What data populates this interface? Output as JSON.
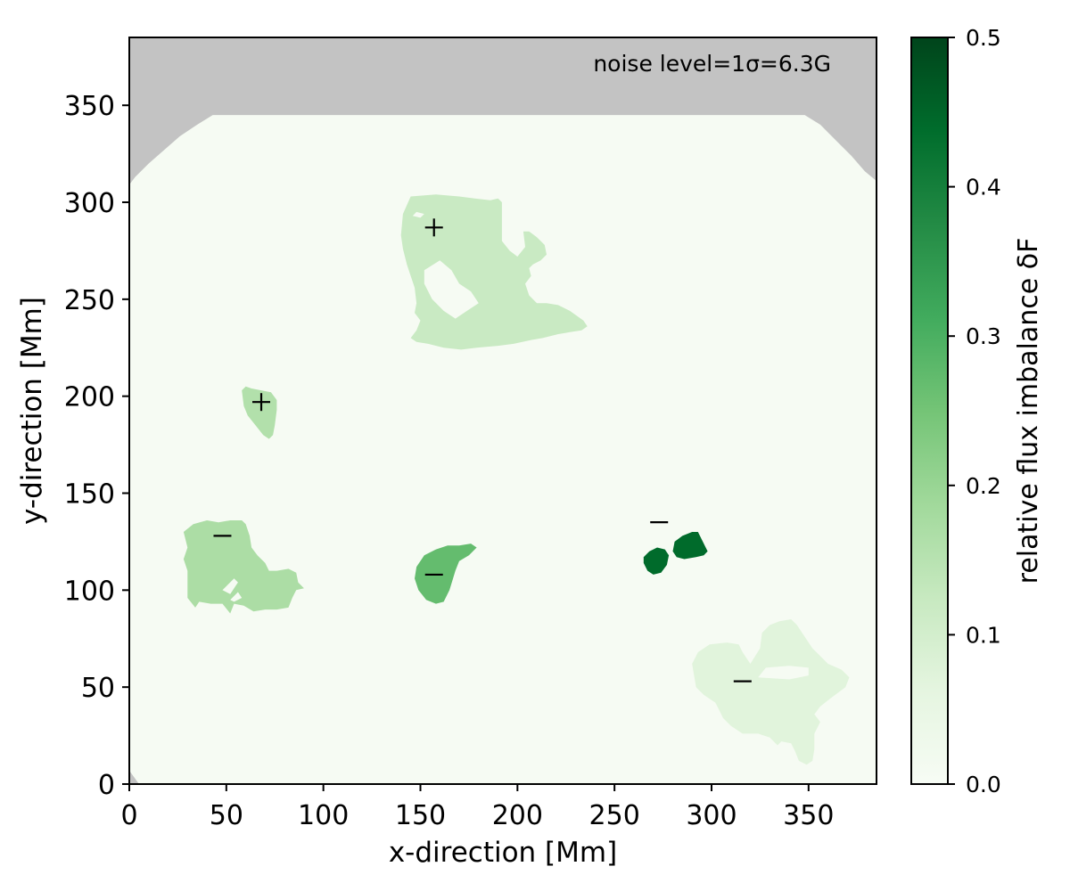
{
  "chart_data": {
    "type": "heatmap",
    "xlabel": "x-direction [Mm]",
    "ylabel": "y-direction [Mm]",
    "xlim": [
      0,
      385
    ],
    "ylim": [
      0,
      385
    ],
    "xticks": [
      0,
      50,
      100,
      150,
      200,
      250,
      300,
      350
    ],
    "yticks": [
      0,
      50,
      100,
      150,
      200,
      250,
      300,
      350
    ],
    "annotation": "noise level=1σ=6.3G",
    "colorbar": {
      "label": "relative flux imbalance δF",
      "range": [
        0.0,
        0.5
      ],
      "ticks": [
        "0.0",
        "0.1",
        "0.2",
        "0.3",
        "0.4",
        "0.5"
      ],
      "colormap": [
        "#f7fcf5",
        "#e5f5e0",
        "#c7e9c0",
        "#a1d99b",
        "#74c476",
        "#41ab5d",
        "#238b45",
        "#006d2c",
        "#00441b"
      ]
    },
    "background": {
      "value": 0.0,
      "color": "#f6fbf3"
    },
    "masked_color": "#c3c3c3",
    "regions": [
      {
        "name": "region-upper-center",
        "polarity": "+",
        "value": 0.12,
        "center": [
          155,
          265
        ],
        "sign_position": [
          157,
          287
        ],
        "outline": [
          [
            141,
            294
          ],
          [
            145,
            303
          ],
          [
            158,
            304
          ],
          [
            170,
            303
          ],
          [
            178,
            302
          ],
          [
            186,
            301
          ],
          [
            190,
            302
          ],
          [
            192,
            300
          ],
          [
            192,
            290
          ],
          [
            192,
            280
          ],
          [
            196,
            275
          ],
          [
            200,
            272
          ],
          [
            204,
            277
          ],
          [
            203,
            285
          ],
          [
            206,
            285
          ],
          [
            210,
            282
          ],
          [
            214,
            278
          ],
          [
            215,
            273
          ],
          [
            212,
            270
          ],
          [
            208,
            268
          ],
          [
            206,
            266
          ],
          [
            207,
            262
          ],
          [
            204,
            258
          ],
          [
            206,
            252
          ],
          [
            210,
            248
          ],
          [
            215,
            248
          ],
          [
            221,
            247
          ],
          [
            227,
            244
          ],
          [
            234,
            239
          ],
          [
            236,
            236
          ],
          [
            233,
            234
          ],
          [
            227,
            233
          ],
          [
            221,
            232
          ],
          [
            213,
            230
          ],
          [
            207,
            229
          ],
          [
            198,
            227
          ],
          [
            190,
            226
          ],
          [
            179,
            225
          ],
          [
            171,
            224
          ],
          [
            162,
            225
          ],
          [
            154,
            227
          ],
          [
            148,
            228
          ],
          [
            145,
            230
          ],
          [
            148,
            234
          ],
          [
            150,
            239
          ],
          [
            147,
            243
          ],
          [
            148,
            248
          ],
          [
            147,
            256
          ],
          [
            145,
            262
          ],
          [
            143,
            268
          ],
          [
            141,
            276
          ],
          [
            140,
            283
          ],
          [
            141,
            294
          ]
        ],
        "holes": [
          [
            [
              152,
              265
            ],
            [
              160,
              270
            ],
            [
              166,
              265
            ],
            [
              170,
              258
            ],
            [
              176,
              254
            ],
            [
              180,
              248
            ],
            [
              174,
              244
            ],
            [
              168,
              240
            ],
            [
              162,
              244
            ],
            [
              156,
              250
            ],
            [
              152,
              258
            ],
            [
              152,
              265
            ]
          ],
          [
            [
              146,
              293
            ],
            [
              150,
              292
            ],
            [
              152,
              294
            ],
            [
              148,
              295
            ],
            [
              146,
              293
            ]
          ]
        ]
      },
      {
        "name": "region-left-small",
        "polarity": "+",
        "value": 0.16,
        "center": [
          70,
          195
        ],
        "sign_position": [
          68,
          197
        ],
        "outline": [
          [
            58,
            203
          ],
          [
            60,
            205
          ],
          [
            63,
            204
          ],
          [
            68,
            203
          ],
          [
            73,
            202
          ],
          [
            76,
            198
          ],
          [
            76,
            193
          ],
          [
            75,
            185
          ],
          [
            74,
            180
          ],
          [
            72,
            178
          ],
          [
            69,
            180
          ],
          [
            65,
            185
          ],
          [
            61,
            190
          ],
          [
            59,
            195
          ],
          [
            58,
            203
          ]
        ]
      },
      {
        "name": "region-lower-left",
        "polarity": "-",
        "value": 0.17,
        "center": [
          58,
          115
        ],
        "sign_position": [
          48,
          128
        ],
        "outline": [
          [
            28,
            130
          ],
          [
            33,
            134
          ],
          [
            40,
            136
          ],
          [
            46,
            135
          ],
          [
            52,
            136
          ],
          [
            58,
            136
          ],
          [
            60,
            134
          ],
          [
            62,
            128
          ],
          [
            63,
            122
          ],
          [
            66,
            118
          ],
          [
            70,
            114
          ],
          [
            72,
            110
          ],
          [
            76,
            110
          ],
          [
            82,
            111
          ],
          [
            86,
            109
          ],
          [
            87,
            104
          ],
          [
            90,
            101
          ],
          [
            86,
            100
          ],
          [
            84,
            96
          ],
          [
            82,
            91
          ],
          [
            76,
            90
          ],
          [
            70,
            90
          ],
          [
            64,
            89
          ],
          [
            59,
            92
          ],
          [
            54,
            93
          ],
          [
            52,
            88
          ],
          [
            48,
            93
          ],
          [
            42,
            93
          ],
          [
            36,
            94
          ],
          [
            34,
            91
          ],
          [
            30,
            96
          ],
          [
            30,
            102
          ],
          [
            30,
            110
          ],
          [
            28,
            116
          ],
          [
            30,
            122
          ],
          [
            28,
            130
          ]
        ],
        "holes": [
          [
            [
              48,
              100
            ],
            [
              54,
              106
            ],
            [
              56,
              104
            ],
            [
              52,
              98
            ],
            [
              48,
              100
            ]
          ],
          [
            [
              52,
              95
            ],
            [
              56,
              99
            ],
            [
              58,
              96
            ],
            [
              54,
              94
            ],
            [
              52,
              95
            ]
          ]
        ]
      },
      {
        "name": "region-center",
        "polarity": "-",
        "value": 0.27,
        "center": [
          162,
          110
        ],
        "sign_position": [
          157,
          108
        ],
        "outline": [
          [
            148,
            112
          ],
          [
            152,
            118
          ],
          [
            158,
            121
          ],
          [
            164,
            123
          ],
          [
            170,
            123
          ],
          [
            176,
            124
          ],
          [
            179,
            122
          ],
          [
            175,
            118
          ],
          [
            170,
            115
          ],
          [
            168,
            110
          ],
          [
            165,
            100
          ],
          [
            162,
            94
          ],
          [
            158,
            93
          ],
          [
            153,
            95
          ],
          [
            149,
            100
          ],
          [
            147,
            106
          ],
          [
            148,
            112
          ]
        ]
      },
      {
        "name": "region-right-dark-a",
        "polarity": "-",
        "value": 0.44,
        "center": [
          272,
          115
        ],
        "sign_position": [
          273,
          135
        ],
        "outline": [
          [
            265,
            117
          ],
          [
            268,
            120
          ],
          [
            272,
            122
          ],
          [
            276,
            121
          ],
          [
            278,
            118
          ],
          [
            277,
            113
          ],
          [
            274,
            109
          ],
          [
            270,
            108
          ],
          [
            267,
            110
          ],
          [
            265,
            114
          ],
          [
            265,
            117
          ]
        ]
      },
      {
        "name": "region-right-dark-b",
        "polarity": "-",
        "value": 0.44,
        "center": [
          289,
          121
        ],
        "sign_position": null,
        "outline": [
          [
            281,
            125
          ],
          [
            285,
            128
          ],
          [
            290,
            130
          ],
          [
            293,
            130
          ],
          [
            296,
            124
          ],
          [
            298,
            120
          ],
          [
            296,
            118
          ],
          [
            292,
            117
          ],
          [
            286,
            116
          ],
          [
            282,
            117
          ],
          [
            280,
            120
          ],
          [
            281,
            125
          ]
        ]
      },
      {
        "name": "region-lower-right",
        "polarity": "-",
        "value": 0.07,
        "center": [
          320,
          55
        ],
        "sign_position": [
          316,
          53
        ],
        "outline": [
          [
            293,
            68
          ],
          [
            299,
            72
          ],
          [
            308,
            73
          ],
          [
            314,
            72
          ],
          [
            316,
            68
          ],
          [
            320,
            62
          ],
          [
            325,
            70
          ],
          [
            326,
            78
          ],
          [
            330,
            82
          ],
          [
            335,
            84
          ],
          [
            341,
            85
          ],
          [
            344,
            82
          ],
          [
            348,
            76
          ],
          [
            352,
            70
          ],
          [
            356,
            66
          ],
          [
            360,
            62
          ],
          [
            367,
            59
          ],
          [
            371,
            55
          ],
          [
            369,
            50
          ],
          [
            365,
            47
          ],
          [
            361,
            44
          ],
          [
            356,
            40
          ],
          [
            353,
            36
          ],
          [
            356,
            32
          ],
          [
            353,
            26
          ],
          [
            353,
            18
          ],
          [
            352,
            12
          ],
          [
            349,
            10
          ],
          [
            345,
            12
          ],
          [
            343,
            17
          ],
          [
            341,
            21
          ],
          [
            336,
            22
          ],
          [
            334,
            20
          ],
          [
            330,
            24
          ],
          [
            324,
            26
          ],
          [
            316,
            26
          ],
          [
            310,
            30
          ],
          [
            306,
            34
          ],
          [
            304,
            38
          ],
          [
            302,
            42
          ],
          [
            296,
            46
          ],
          [
            292,
            50
          ],
          [
            291,
            56
          ],
          [
            290,
            62
          ],
          [
            293,
            68
          ]
        ],
        "holes": [
          [
            [
              324,
              55
            ],
            [
              340,
              54
            ],
            [
              350,
              56
            ],
            [
              350,
              60
            ],
            [
              340,
              61
            ],
            [
              328,
              60
            ],
            [
              324,
              55
            ]
          ]
        ]
      }
    ],
    "masked_regions": [
      {
        "name": "mask-top",
        "outline": [
          [
            0,
            385
          ],
          [
            385,
            385
          ],
          [
            385,
            311
          ],
          [
            379,
            316
          ],
          [
            372,
            324
          ],
          [
            364,
            332
          ],
          [
            356,
            340
          ],
          [
            348,
            345
          ],
          [
            310,
            345
          ],
          [
            280,
            345
          ],
          [
            250,
            345
          ],
          [
            200,
            345
          ],
          [
            150,
            345
          ],
          [
            100,
            345
          ],
          [
            60,
            345
          ],
          [
            43,
            345
          ],
          [
            35,
            340
          ],
          [
            26,
            334
          ],
          [
            18,
            327
          ],
          [
            10,
            320
          ],
          [
            3,
            313
          ],
          [
            0,
            309
          ]
        ]
      },
      {
        "name": "mask-bottom-left",
        "outline": [
          [
            0,
            0
          ],
          [
            0,
            7
          ],
          [
            5,
            0
          ]
        ]
      }
    ]
  }
}
